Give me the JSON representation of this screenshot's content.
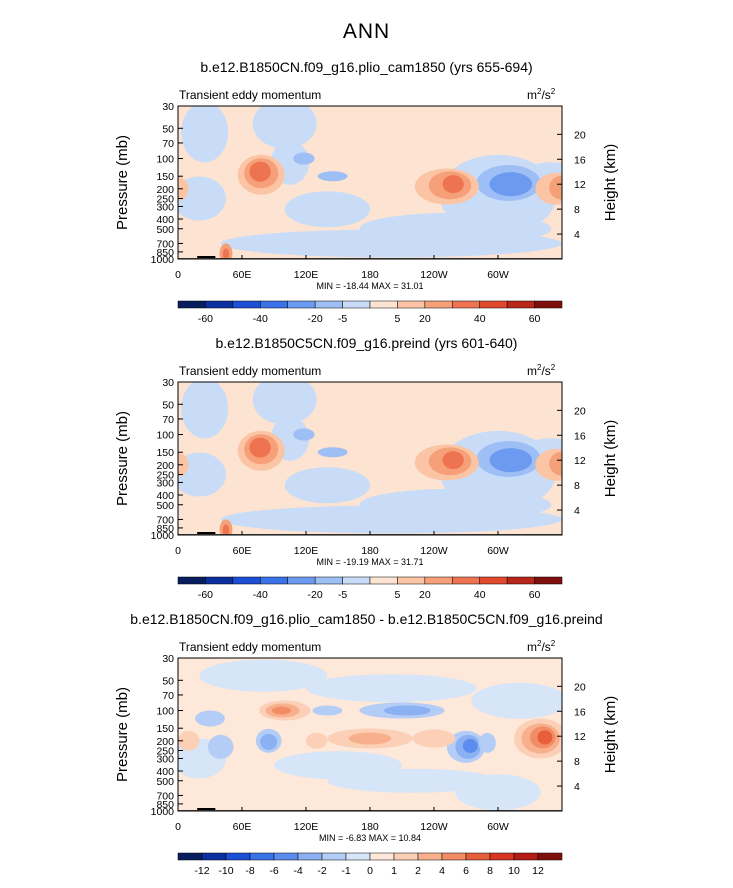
{
  "figure_title": "ANN",
  "panels": [
    {
      "title": "b.e12.B1850CN.f09_g16.plio_cam1850 (yrs 655-694)",
      "left_label": "Transient eddy momentum",
      "units": "m2/s2",
      "units_base": "m",
      "units_sup1": "2",
      "units_mid": "/s",
      "units_sup2": "2",
      "stats": "MIN = -18.44   MAX =  31.01"
    },
    {
      "title": "b.e12.B1850C5CN.f09_g16.preind (yrs 601-640)",
      "left_label": "Transient eddy momentum",
      "units": "m2/s2",
      "units_base": "m",
      "units_sup1": "2",
      "units_mid": "/s",
      "units_sup2": "2",
      "stats": "MIN = -19.19   MAX =  31.71"
    },
    {
      "title": "b.e12.B1850CN.f09_g16.plio_cam1850 - b.e12.B1850C5CN.f09_g16.preind",
      "left_label": "Transient eddy momentum",
      "units": "m2/s2",
      "units_base": "m",
      "units_sup1": "2",
      "units_mid": "/s",
      "units_sup2": "2",
      "stats": "MIN =  -6.83   MAX =  10.84"
    }
  ],
  "chart_data": [
    {
      "type": "heatmap",
      "title": "b.e12.B1850CN.f09_g16.plio_cam1850 (yrs 655-694)",
      "variable": "Transient eddy momentum",
      "ylabel": "Pressure (mb)",
      "ylabel_right": "Height (km)",
      "x_ticks": [
        "0",
        "60E",
        "120E",
        "180",
        "120W",
        "60W"
      ],
      "y_ticks": [
        "30",
        "50",
        "70",
        "100",
        "150",
        "200",
        "250",
        "300",
        "400",
        "500",
        "700",
        "850",
        "1000"
      ],
      "y_right_ticks": [
        "20",
        "16",
        "12",
        "8",
        "4"
      ],
      "colorbar_levels": [
        "-60",
        "-40",
        "-20",
        "-5",
        "5",
        "20",
        "40",
        "60"
      ],
      "min": -18.44,
      "max": 31.01
    },
    {
      "type": "heatmap",
      "title": "b.e12.B1850C5CN.f09_g16.preind (yrs 601-640)",
      "variable": "Transient eddy momentum",
      "ylabel": "Pressure (mb)",
      "ylabel_right": "Height (km)",
      "x_ticks": [
        "0",
        "60E",
        "120E",
        "180",
        "120W",
        "60W"
      ],
      "y_ticks": [
        "30",
        "50",
        "70",
        "100",
        "150",
        "200",
        "250",
        "300",
        "400",
        "500",
        "700",
        "850",
        "1000"
      ],
      "y_right_ticks": [
        "20",
        "16",
        "12",
        "8",
        "4"
      ],
      "colorbar_levels": [
        "-60",
        "-40",
        "-20",
        "-5",
        "5",
        "20",
        "40",
        "60"
      ],
      "min": -19.19,
      "max": 31.71
    },
    {
      "type": "heatmap",
      "title": "b.e12.B1850CN.f09_g16.plio_cam1850 - b.e12.B1850C5CN.f09_g16.preind",
      "variable": "Transient eddy momentum",
      "ylabel": "Pressure (mb)",
      "ylabel_right": "Height (km)",
      "x_ticks": [
        "0",
        "60E",
        "120E",
        "180",
        "120W",
        "60W"
      ],
      "y_ticks": [
        "30",
        "50",
        "70",
        "100",
        "150",
        "200",
        "250",
        "300",
        "400",
        "500",
        "700",
        "850",
        "1000"
      ],
      "y_right_ticks": [
        "20",
        "16",
        "12",
        "8",
        "4"
      ],
      "colorbar_levels": [
        "-12",
        "-10",
        "-8",
        "-6",
        "-4",
        "-2",
        "-1",
        "0",
        "1",
        "2",
        "4",
        "6",
        "8",
        "10",
        "12"
      ],
      "min": -6.83,
      "max": 10.84
    }
  ],
  "colors": {
    "full_palette": [
      "#081d5e",
      "#0b2f9c",
      "#1c4fd6",
      "#3a73e8",
      "#6b9af0",
      "#9dbff5",
      "#c8dcf7",
      "#fde3d2",
      "#fbc5a5",
      "#f6a07a",
      "#ee7350",
      "#e04a2c",
      "#b9261a",
      "#7e0f0c"
    ],
    "diff_palette": [
      "#081d5e",
      "#0b2f9c",
      "#1c4fd6",
      "#3a73e8",
      "#5c8cee",
      "#8bb1f3",
      "#b3cdf6",
      "#d6e5f8",
      "#fde8da",
      "#fbd0b6",
      "#f8b08c",
      "#f28c64",
      "#e85e3c",
      "#d63622",
      "#b31b15",
      "#7e0f0c"
    ]
  }
}
